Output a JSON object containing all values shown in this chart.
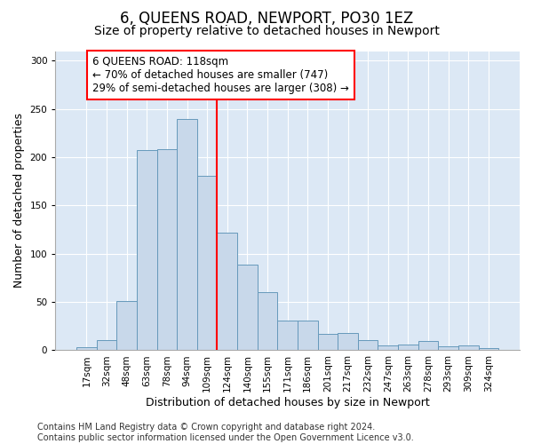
{
  "title": "6, QUEENS ROAD, NEWPORT, PO30 1EZ",
  "subtitle": "Size of property relative to detached houses in Newport",
  "xlabel": "Distribution of detached houses by size in Newport",
  "ylabel": "Number of detached properties",
  "categories": [
    "17sqm",
    "32sqm",
    "48sqm",
    "63sqm",
    "78sqm",
    "94sqm",
    "109sqm",
    "124sqm",
    "140sqm",
    "155sqm",
    "171sqm",
    "186sqm",
    "201sqm",
    "217sqm",
    "232sqm",
    "247sqm",
    "263sqm",
    "278sqm",
    "293sqm",
    "309sqm",
    "324sqm"
  ],
  "values": [
    3,
    11,
    51,
    207,
    208,
    240,
    181,
    122,
    89,
    60,
    31,
    31,
    17,
    18,
    11,
    5,
    6,
    10,
    4,
    5,
    2
  ],
  "bar_color": "#c8d8ea",
  "bar_edgecolor": "#6699bb",
  "plot_bg_color": "#dce8f5",
  "fig_bg_color": "#ffffff",
  "vline_color": "red",
  "vline_x_index": 7,
  "annotation_title": "6 QUEENS ROAD: 118sqm",
  "annotation_line1": "← 70% of detached houses are smaller (747)",
  "annotation_line2": "29% of semi-detached houses are larger (308) →",
  "annotation_box_facecolor": "white",
  "annotation_box_edgecolor": "red",
  "ylim": [
    0,
    310
  ],
  "yticks": [
    0,
    50,
    100,
    150,
    200,
    250,
    300
  ],
  "footer1": "Contains HM Land Registry data © Crown copyright and database right 2024.",
  "footer2": "Contains public sector information licensed under the Open Government Licence v3.0.",
  "title_fontsize": 12,
  "subtitle_fontsize": 10,
  "axis_label_fontsize": 9,
  "tick_fontsize": 7.5,
  "annotation_fontsize": 8.5,
  "footer_fontsize": 7
}
